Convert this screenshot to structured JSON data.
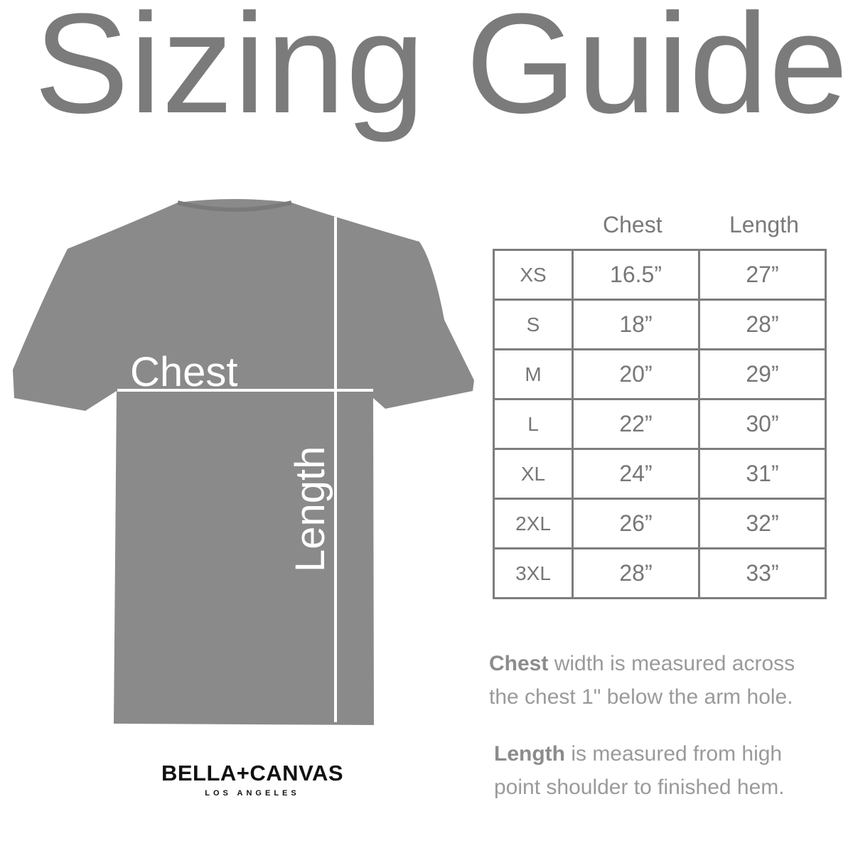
{
  "title": "Sizing Guide",
  "diagram": {
    "chest_label": "Chest",
    "length_label": "Length",
    "shirt_color": "#8a8a8a"
  },
  "table": {
    "headers": [
      "Chest",
      "Length"
    ],
    "rows": [
      {
        "size": "XS",
        "chest": "16.5”",
        "length": "27”"
      },
      {
        "size": "S",
        "chest": "18”",
        "length": "28”"
      },
      {
        "size": "M",
        "chest": "20”",
        "length": "29”"
      },
      {
        "size": "L",
        "chest": "22”",
        "length": "30”"
      },
      {
        "size": "XL",
        "chest": "24”",
        "length": "31”"
      },
      {
        "size": "2XL",
        "chest": "26”",
        "length": "32”"
      },
      {
        "size": "3XL",
        "chest": "28”",
        "length": "33”"
      }
    ]
  },
  "notes": {
    "chest_term": "Chest",
    "chest_line1": " width is measured across",
    "chest_line2": "the chest 1\" below the arm hole.",
    "length_term": "Length",
    "length_line1": " is measured from high",
    "length_line2": "point shoulder to finished hem."
  },
  "logo": {
    "name": "BELLA+CANVAS",
    "tagline": "LOS ANGELES"
  }
}
